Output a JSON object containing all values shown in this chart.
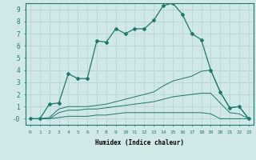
{
  "xlabel": "Humidex (Indice chaleur)",
  "ylabel": "",
  "bg_color": "#d0e8e8",
  "grid_color": "#b8d4d4",
  "line_color": "#1a7a6e",
  "xlim": [
    -0.5,
    23.5
  ],
  "ylim": [
    -0.5,
    9.5
  ],
  "xticks": [
    0,
    1,
    2,
    3,
    4,
    5,
    6,
    7,
    8,
    9,
    10,
    11,
    12,
    13,
    14,
    15,
    16,
    17,
    18,
    19,
    20,
    21,
    22,
    23
  ],
  "yticks": [
    0,
    1,
    2,
    3,
    4,
    5,
    6,
    7,
    8,
    9
  ],
  "ytick_labels": [
    "-0",
    "1",
    "2",
    "3",
    "4",
    "5",
    "6",
    "7",
    "8",
    "9"
  ],
  "main_x": [
    0,
    1,
    2,
    3,
    4,
    5,
    6,
    7,
    8,
    9,
    10,
    11,
    12,
    13,
    14,
    15,
    16,
    17,
    18,
    19,
    20,
    21,
    22,
    23
  ],
  "main_y": [
    0.0,
    0.0,
    1.2,
    1.3,
    3.7,
    3.3,
    3.3,
    6.4,
    6.3,
    7.4,
    7.0,
    7.4,
    7.4,
    8.1,
    9.3,
    9.5,
    8.6,
    7.0,
    6.5,
    4.0,
    2.2,
    0.9,
    1.0,
    0.0
  ],
  "line2_x": [
    0,
    1,
    2,
    3,
    4,
    5,
    6,
    7,
    8,
    9,
    10,
    11,
    12,
    13,
    14,
    15,
    16,
    17,
    18,
    19,
    20,
    21,
    22,
    23
  ],
  "line2_y": [
    0.0,
    0.0,
    0.1,
    0.8,
    1.0,
    1.0,
    1.0,
    1.1,
    1.2,
    1.4,
    1.6,
    1.8,
    2.0,
    2.2,
    2.7,
    3.1,
    3.3,
    3.5,
    3.9,
    4.0,
    2.2,
    0.9,
    1.0,
    0.0
  ],
  "line3_x": [
    0,
    1,
    2,
    3,
    4,
    5,
    6,
    7,
    8,
    9,
    10,
    11,
    12,
    13,
    14,
    15,
    16,
    17,
    18,
    19,
    20,
    21,
    22,
    23
  ],
  "line3_y": [
    0.0,
    0.0,
    0.0,
    0.5,
    0.7,
    0.7,
    0.8,
    0.8,
    0.9,
    1.0,
    1.1,
    1.2,
    1.3,
    1.4,
    1.6,
    1.8,
    1.9,
    2.0,
    2.1,
    2.1,
    1.3,
    0.5,
    0.4,
    0.0
  ],
  "line4_x": [
    0,
    1,
    2,
    3,
    4,
    5,
    6,
    7,
    8,
    9,
    10,
    11,
    12,
    13,
    14,
    15,
    16,
    17,
    18,
    19,
    20,
    21,
    22,
    23
  ],
  "line4_y": [
    0.0,
    0.0,
    0.0,
    0.1,
    0.2,
    0.2,
    0.2,
    0.3,
    0.3,
    0.4,
    0.5,
    0.5,
    0.5,
    0.5,
    0.5,
    0.5,
    0.5,
    0.5,
    0.5,
    0.4,
    0.0,
    0.0,
    0.0,
    0.0
  ]
}
